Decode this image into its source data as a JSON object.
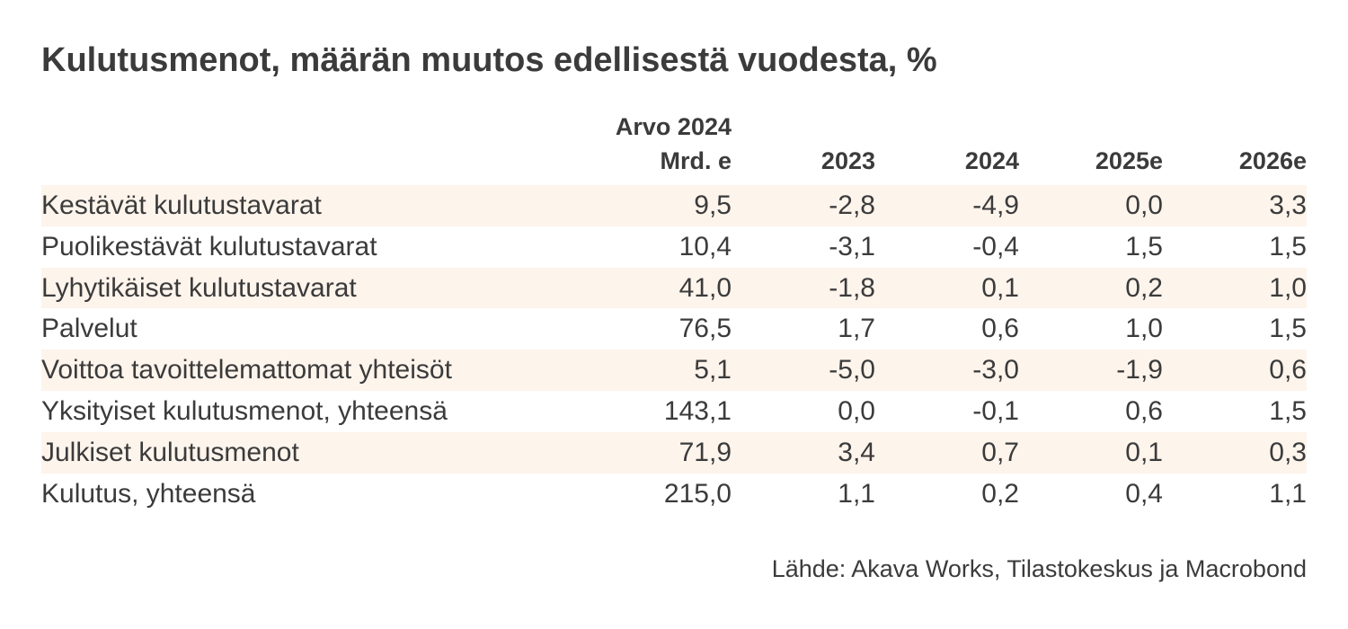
{
  "title": "Kulutusmenot, määrän muutos edellisestä vuodesta, %",
  "source": "Lähde: Akava Works, Tilastokeskus ja Macrobond",
  "colors": {
    "stripe": "#fdf4ec",
    "text": "#3b3b3b"
  },
  "chart_data": {
    "type": "table",
    "title": "Kulutusmenot, määrän muutos edellisestä vuodesta, %",
    "columns": [
      {
        "line1": "Arvo 2024",
        "line2": "Mrd. e"
      },
      {
        "line1": "",
        "line2": "2023"
      },
      {
        "line1": "",
        "line2": "2024"
      },
      {
        "line1": "",
        "line2": "2025e"
      },
      {
        "line1": "",
        "line2": "2026e"
      }
    ],
    "rows": [
      {
        "label": "Kestävät kulutustavarat",
        "values": [
          "9,5",
          "-2,8",
          "-4,9",
          "0,0",
          "3,3"
        ]
      },
      {
        "label": "Puolikestävät kulutustavarat",
        "values": [
          "10,4",
          "-3,1",
          "-0,4",
          "1,5",
          "1,5"
        ]
      },
      {
        "label": "Lyhytikäiset kulutustavarat",
        "values": [
          "41,0",
          "-1,8",
          "0,1",
          "0,2",
          "1,0"
        ]
      },
      {
        "label": "Palvelut",
        "values": [
          "76,5",
          "1,7",
          "0,6",
          "1,0",
          "1,5"
        ]
      },
      {
        "label": "Voittoa tavoittelemattomat yhteisöt",
        "values": [
          "5,1",
          "-5,0",
          "-3,0",
          "-1,9",
          "0,6"
        ]
      },
      {
        "label": "Yksityiset kulutusmenot, yhteensä",
        "values": [
          "143,1",
          "0,0",
          "-0,1",
          "0,6",
          "1,5"
        ]
      },
      {
        "label": "Julkiset kulutusmenot",
        "values": [
          "71,9",
          "3,4",
          "0,7",
          "0,1",
          "0,3"
        ]
      },
      {
        "label": "Kulutus, yhteensä",
        "values": [
          "215,0",
          "1,1",
          "0,2",
          "0,4",
          "1,1"
        ]
      }
    ]
  }
}
